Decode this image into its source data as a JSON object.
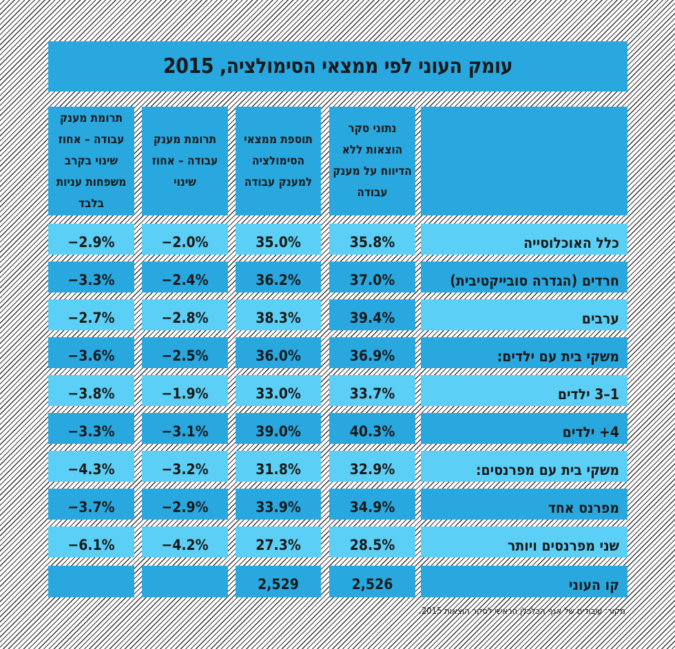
{
  "title": "עומק העוני לפי ממצאי הסימולציה, 2015",
  "columns": [
    "",
    "נתוני סקר הוצאות ללא הדיווח על מענק עבודה",
    "תוספת ממצאי הסימולציה למענק עבודה",
    "תרומת מענק עבודה – אחוז שינוי",
    "תרומת מענק עבודה – אחוז שינוי בקרב משפחות עניות בלבד"
  ],
  "rows": [
    {
      "label": "כלל האוכלוסייה",
      "values": [
        "35.8%",
        "35.0%",
        "−2.0%",
        "−2.9%"
      ]
    },
    {
      "label": "חרדים (הגדרה סובייקטיבית)",
      "values": [
        "37.0%",
        "36.2%",
        "−2.4%",
        "−3.3%"
      ]
    },
    {
      "label": "ערבים",
      "values": [
        "39.4%",
        "38.3%",
        "−2.8%",
        "−2.7%"
      ]
    },
    {
      "label": "משקי בית עם ילדים:",
      "values": [
        "36.9%",
        "36.0%",
        "−2.5%",
        "−3.6%"
      ]
    },
    {
      "label": "1–3 ילדים",
      "values": [
        "33.7%",
        "33.0%",
        "−1.9%",
        "−3.8%"
      ]
    },
    {
      "label": "4+ ילדים",
      "values": [
        "40.3%",
        "39.0%",
        "−3.1%",
        "−3.3%"
      ]
    },
    {
      "label": "משקי בית עם מפרנסים:",
      "values": [
        "32.9%",
        "31.8%",
        "−3.2%",
        "−4.3%"
      ]
    },
    {
      "label": "מפרנס אחד",
      "values": [
        "34.9%",
        "33.9%",
        "−2.9%",
        "−3.7%"
      ]
    },
    {
      "label": "שני מפרנסים ויותר",
      "values": [
        "28.5%",
        "27.3%",
        "−4.2%",
        "−6.1%"
      ]
    },
    {
      "label": "קו העוני",
      "values": [
        "2,526",
        "2,529",
        "",
        ""
      ]
    }
  ],
  "source": "מקור: עיבודים של אגף הכלכלן הראשי לסקר הוצאות 2015.",
  "colors": {
    "dark": "#29a8e0",
    "light": "#5bcff5"
  }
}
